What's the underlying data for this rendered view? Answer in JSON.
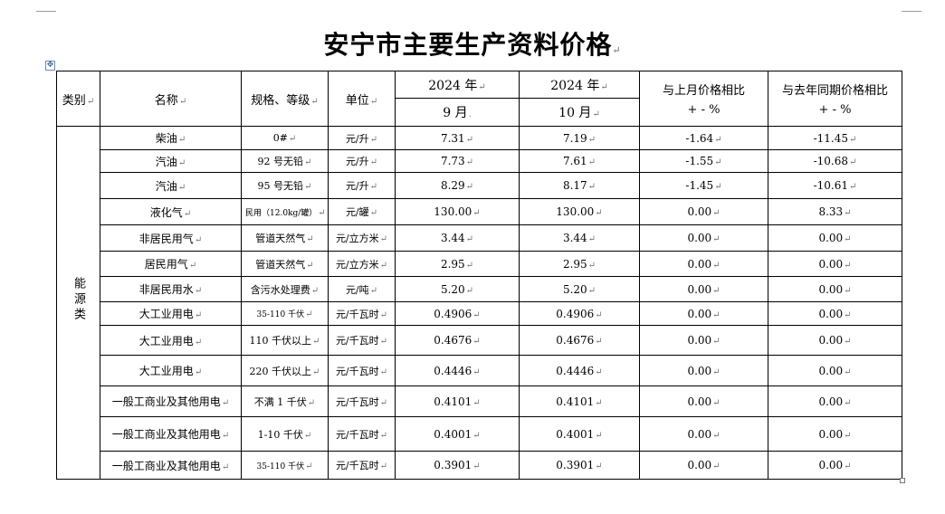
{
  "title": "安宁市主要生产资料价格",
  "header": {
    "category": "类别",
    "name": "名称",
    "spec": "规格、等级",
    "unit": "单位",
    "col1_year": "2024 年",
    "col1_month": "9 月",
    "col2_year": "2024 年",
    "col2_month": "10 月",
    "mom_line1": "与上月价格相比",
    "mom_line2": "+ - %",
    "yoy_line1": "与去年同期价格相比",
    "yoy_line2": "+ - %"
  },
  "category_label": "能源类",
  "rows": [
    {
      "name": "柴油",
      "spec": "0#",
      "unit": "元/升",
      "sep": "7.31",
      "oct": "7.19",
      "mom": "-1.64",
      "yoy": "-11.45"
    },
    {
      "name": "汽油",
      "spec": "92 号无铅",
      "unit": "元/升",
      "sep": "7.73",
      "oct": "7.61",
      "mom": "-1.55",
      "yoy": "-10.68"
    },
    {
      "name": "汽油",
      "spec": "95 号无铅",
      "unit": "元/升",
      "sep": "8.29",
      "oct": "8.17",
      "mom": "-1.45",
      "yoy": "-10.61"
    },
    {
      "name": "液化气",
      "spec": "民用（12.0kg/罐）",
      "unit": "元/罐",
      "sep": "130.00",
      "oct": "130.00",
      "mom": "0.00",
      "yoy": "8.33"
    },
    {
      "name": "非居民用气",
      "spec": "管道天然气",
      "unit": "元/立方米",
      "sep": "3.44",
      "oct": "3.44",
      "mom": "0.00",
      "yoy": "0.00"
    },
    {
      "name": "居民用气",
      "spec": "管道天然气",
      "unit": "元/立方米",
      "sep": "2.95",
      "oct": "2.95",
      "mom": "0.00",
      "yoy": "0.00"
    },
    {
      "name": "非居民用水",
      "spec": "含污水处理费",
      "unit": "元/吨",
      "sep": "5.20",
      "oct": "5.20",
      "mom": "0.00",
      "yoy": "0.00"
    },
    {
      "name": "大工业用电",
      "spec": "35-110 千伏",
      "unit": "元/千瓦时",
      "sep": "0.4906",
      "oct": "0.4906",
      "mom": "0.00",
      "yoy": "0.00"
    },
    {
      "name": "大工业用电",
      "spec": "110 千伏以上",
      "unit": "元/千瓦时",
      "sep": "0.4676",
      "oct": "0.4676",
      "mom": "0.00",
      "yoy": "0.00"
    },
    {
      "name": "大工业用电",
      "spec": "220 千伏以上",
      "unit": "元/千瓦时",
      "sep": "0.4446",
      "oct": "0.4446",
      "mom": "0.00",
      "yoy": "0.00"
    },
    {
      "name": "一般工商业及其他用电",
      "spec": "不满 1 千伏",
      "unit": "元/千瓦时",
      "sep": "0.4101",
      "oct": "0.4101",
      "mom": "0.00",
      "yoy": "0.00"
    },
    {
      "name": "一般工商业及其他用电",
      "spec": "1-10 千伏",
      "unit": "元/千瓦时",
      "sep": "0.4001",
      "oct": "0.4001",
      "mom": "0.00",
      "yoy": "0.00"
    },
    {
      "name": "一般工商业及其他用电",
      "spec": "35-110 千伏",
      "unit": "元/千瓦时",
      "sep": "0.3901",
      "oct": "0.3901",
      "mom": "0.00",
      "yoy": "0.00"
    }
  ]
}
